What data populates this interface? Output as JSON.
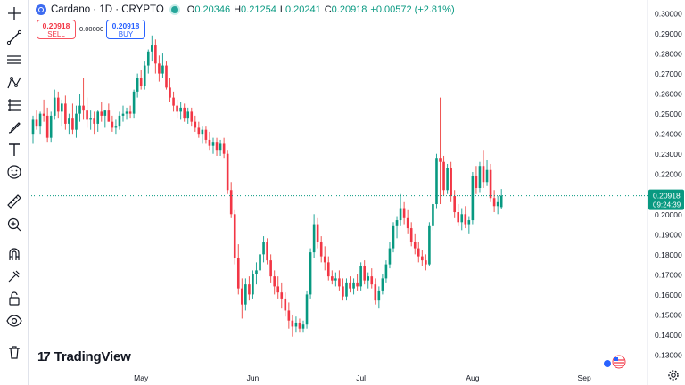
{
  "header": {
    "symbol_title": "Cardano · 1D · CRYPTO",
    "ohlc": [
      {
        "key": "O",
        "value": "0.20346"
      },
      {
        "key": "H",
        "value": "0.21254"
      },
      {
        "key": "L",
        "value": "0.20241"
      },
      {
        "key": "C",
        "value": "0.20918"
      }
    ],
    "change": "+0.00572 (+2.81%)"
  },
  "trade": {
    "sell_price": "0.20918",
    "sell_label": "SELL",
    "spread": "0.00000",
    "buy_price": "0.20918",
    "buy_label": "BUY"
  },
  "brand": {
    "name": "TradingView",
    "mark": "17"
  },
  "toolbar_icons": [
    "crosshair-icon",
    "trend-line-icon",
    "horizontal-lines-icon",
    "pattern-icon",
    "fib-icon",
    "brush-icon",
    "text-icon",
    "emoji-icon",
    "ruler-icon",
    "zoom-in-icon",
    "magnet-icon",
    "lock-drawing-icon",
    "unlock-icon",
    "eye-icon",
    "trash-icon"
  ],
  "colors": {
    "up": "#089981",
    "down": "#f23645",
    "wick_up": "#26a69a",
    "wick_down": "#ef5350",
    "price_line": "#089981"
  },
  "price_label": {
    "price": "0.20918",
    "countdown": "09:24:39"
  },
  "chart_data": {
    "type": "candlestick",
    "title": "",
    "y_ticks": [
      "0.13000",
      "0.14000",
      "0.15000",
      "0.16000",
      "0.17000",
      "0.18000",
      "0.19000",
      "0.20000",
      "0.21000",
      "0.22000",
      "0.23000",
      "0.24000",
      "0.25000",
      "0.26000",
      "0.27000",
      "0.28000",
      "0.29000",
      "0.30000"
    ],
    "ylim": [
      0.13,
      0.3
    ],
    "x_labels": [
      {
        "label": "May",
        "index": 30
      },
      {
        "label": "Jun",
        "index": 61
      },
      {
        "label": "Jul",
        "index": 91
      },
      {
        "label": "Aug",
        "index": 122
      },
      {
        "label": "Sep",
        "index": 153
      }
    ],
    "candles": [
      [
        0.24,
        0.249,
        0.235,
        0.247
      ],
      [
        0.247,
        0.252,
        0.242,
        0.244
      ],
      [
        0.244,
        0.251,
        0.24,
        0.25
      ],
      [
        0.25,
        0.257,
        0.246,
        0.249
      ],
      [
        0.249,
        0.253,
        0.236,
        0.238
      ],
      [
        0.238,
        0.251,
        0.236,
        0.249
      ],
      [
        0.249,
        0.262,
        0.247,
        0.258
      ],
      [
        0.258,
        0.261,
        0.248,
        0.251
      ],
      [
        0.251,
        0.257,
        0.244,
        0.255
      ],
      [
        0.255,
        0.259,
        0.242,
        0.245
      ],
      [
        0.245,
        0.25,
        0.24,
        0.248
      ],
      [
        0.248,
        0.255,
        0.24,
        0.242
      ],
      [
        0.242,
        0.254,
        0.238,
        0.25
      ],
      [
        0.25,
        0.26,
        0.246,
        0.254
      ],
      [
        0.254,
        0.268,
        0.247,
        0.252
      ],
      [
        0.252,
        0.258,
        0.243,
        0.247
      ],
      [
        0.247,
        0.252,
        0.242,
        0.248
      ],
      [
        0.248,
        0.251,
        0.24,
        0.245
      ],
      [
        0.245,
        0.252,
        0.241,
        0.251
      ],
      [
        0.251,
        0.256,
        0.246,
        0.249
      ],
      [
        0.249,
        0.252,
        0.243,
        0.252
      ],
      [
        0.252,
        0.255,
        0.246,
        0.246
      ],
      [
        0.246,
        0.249,
        0.241,
        0.243
      ],
      [
        0.243,
        0.247,
        0.24,
        0.244
      ],
      [
        0.244,
        0.251,
        0.242,
        0.249
      ],
      [
        0.249,
        0.254,
        0.246,
        0.25
      ],
      [
        0.25,
        0.253,
        0.247,
        0.251
      ],
      [
        0.251,
        0.254,
        0.248,
        0.25
      ],
      [
        0.25,
        0.262,
        0.248,
        0.261
      ],
      [
        0.261,
        0.27,
        0.258,
        0.268
      ],
      [
        0.268,
        0.272,
        0.262,
        0.264
      ],
      [
        0.264,
        0.276,
        0.262,
        0.274
      ],
      [
        0.274,
        0.282,
        0.27,
        0.281
      ],
      [
        0.281,
        0.289,
        0.276,
        0.284
      ],
      [
        0.284,
        0.287,
        0.27,
        0.275
      ],
      [
        0.275,
        0.279,
        0.266,
        0.27
      ],
      [
        0.27,
        0.28,
        0.268,
        0.274
      ],
      [
        0.274,
        0.276,
        0.262,
        0.263
      ],
      [
        0.263,
        0.268,
        0.256,
        0.258
      ],
      [
        0.258,
        0.261,
        0.251,
        0.254
      ],
      [
        0.254,
        0.257,
        0.248,
        0.251
      ],
      [
        0.251,
        0.256,
        0.247,
        0.253
      ],
      [
        0.253,
        0.255,
        0.246,
        0.248
      ],
      [
        0.248,
        0.253,
        0.245,
        0.251
      ],
      [
        0.251,
        0.253,
        0.244,
        0.246
      ],
      [
        0.246,
        0.249,
        0.241,
        0.243
      ],
      [
        0.243,
        0.246,
        0.238,
        0.24
      ],
      [
        0.24,
        0.244,
        0.235,
        0.242
      ],
      [
        0.242,
        0.244,
        0.235,
        0.237
      ],
      [
        0.237,
        0.241,
        0.232,
        0.234
      ],
      [
        0.234,
        0.238,
        0.23,
        0.236
      ],
      [
        0.236,
        0.238,
        0.229,
        0.232
      ],
      [
        0.232,
        0.237,
        0.229,
        0.235
      ],
      [
        0.235,
        0.238,
        0.228,
        0.23
      ],
      [
        0.23,
        0.232,
        0.21,
        0.212
      ],
      [
        0.212,
        0.216,
        0.198,
        0.2
      ],
      [
        0.2,
        0.202,
        0.175,
        0.178
      ],
      [
        0.178,
        0.185,
        0.16,
        0.163
      ],
      [
        0.163,
        0.168,
        0.148,
        0.155
      ],
      [
        0.155,
        0.168,
        0.152,
        0.165
      ],
      [
        0.165,
        0.169,
        0.157,
        0.16
      ],
      [
        0.16,
        0.172,
        0.158,
        0.17
      ],
      [
        0.17,
        0.176,
        0.165,
        0.172
      ],
      [
        0.172,
        0.182,
        0.168,
        0.18
      ],
      [
        0.18,
        0.189,
        0.176,
        0.186
      ],
      [
        0.186,
        0.188,
        0.175,
        0.177
      ],
      [
        0.177,
        0.18,
        0.166,
        0.169
      ],
      [
        0.169,
        0.172,
        0.16,
        0.164
      ],
      [
        0.164,
        0.169,
        0.158,
        0.161
      ],
      [
        0.161,
        0.166,
        0.153,
        0.158
      ],
      [
        0.158,
        0.161,
        0.149,
        0.152
      ],
      [
        0.152,
        0.156,
        0.143,
        0.147
      ],
      [
        0.147,
        0.15,
        0.139,
        0.144
      ],
      [
        0.144,
        0.149,
        0.141,
        0.146
      ],
      [
        0.146,
        0.148,
        0.141,
        0.143
      ],
      [
        0.143,
        0.147,
        0.141,
        0.145
      ],
      [
        0.145,
        0.162,
        0.143,
        0.16
      ],
      [
        0.16,
        0.183,
        0.158,
        0.181
      ],
      [
        0.181,
        0.2,
        0.178,
        0.195
      ],
      [
        0.195,
        0.198,
        0.183,
        0.186
      ],
      [
        0.186,
        0.189,
        0.176,
        0.179
      ],
      [
        0.179,
        0.184,
        0.172,
        0.176
      ],
      [
        0.176,
        0.179,
        0.167,
        0.169
      ],
      [
        0.169,
        0.172,
        0.165,
        0.167
      ],
      [
        0.167,
        0.171,
        0.164,
        0.168
      ],
      [
        0.168,
        0.172,
        0.162,
        0.164
      ],
      [
        0.164,
        0.168,
        0.157,
        0.159
      ],
      [
        0.159,
        0.168,
        0.157,
        0.166
      ],
      [
        0.166,
        0.169,
        0.161,
        0.163
      ],
      [
        0.163,
        0.168,
        0.16,
        0.166
      ],
      [
        0.166,
        0.17,
        0.162,
        0.164
      ],
      [
        0.164,
        0.176,
        0.162,
        0.174
      ],
      [
        0.174,
        0.177,
        0.165,
        0.167
      ],
      [
        0.167,
        0.171,
        0.163,
        0.169
      ],
      [
        0.169,
        0.173,
        0.163,
        0.165
      ],
      [
        0.165,
        0.168,
        0.155,
        0.157
      ],
      [
        0.157,
        0.164,
        0.153,
        0.162
      ],
      [
        0.162,
        0.17,
        0.16,
        0.168
      ],
      [
        0.168,
        0.177,
        0.166,
        0.175
      ],
      [
        0.175,
        0.186,
        0.173,
        0.183
      ],
      [
        0.183,
        0.196,
        0.181,
        0.194
      ],
      [
        0.194,
        0.199,
        0.188,
        0.197
      ],
      [
        0.197,
        0.21,
        0.194,
        0.203
      ],
      [
        0.203,
        0.206,
        0.195,
        0.198
      ],
      [
        0.198,
        0.202,
        0.19,
        0.193
      ],
      [
        0.193,
        0.196,
        0.184,
        0.186
      ],
      [
        0.186,
        0.19,
        0.18,
        0.183
      ],
      [
        0.183,
        0.186,
        0.176,
        0.179
      ],
      [
        0.179,
        0.182,
        0.174,
        0.177
      ],
      [
        0.177,
        0.18,
        0.172,
        0.175
      ],
      [
        0.175,
        0.196,
        0.174,
        0.194
      ],
      [
        0.194,
        0.206,
        0.192,
        0.205
      ],
      [
        0.205,
        0.23,
        0.203,
        0.228
      ],
      [
        0.228,
        0.258,
        0.205,
        0.226
      ],
      [
        0.226,
        0.229,
        0.209,
        0.212
      ],
      [
        0.212,
        0.225,
        0.21,
        0.223
      ],
      [
        0.223,
        0.226,
        0.206,
        0.209
      ],
      [
        0.209,
        0.212,
        0.198,
        0.201
      ],
      [
        0.201,
        0.205,
        0.194,
        0.196
      ],
      [
        0.196,
        0.203,
        0.192,
        0.2
      ],
      [
        0.2,
        0.204,
        0.193,
        0.195
      ],
      [
        0.195,
        0.199,
        0.19,
        0.197
      ],
      [
        0.197,
        0.221,
        0.195,
        0.219
      ],
      [
        0.219,
        0.224,
        0.21,
        0.213
      ],
      [
        0.213,
        0.226,
        0.211,
        0.224
      ],
      [
        0.224,
        0.232,
        0.213,
        0.216
      ],
      [
        0.216,
        0.227,
        0.214,
        0.222
      ],
      [
        0.222,
        0.225,
        0.206,
        0.208
      ],
      [
        0.208,
        0.212,
        0.201,
        0.204
      ],
      [
        0.204,
        0.209,
        0.2,
        0.206
      ],
      [
        0.2035,
        0.2125,
        0.2024,
        0.2092
      ]
    ]
  }
}
